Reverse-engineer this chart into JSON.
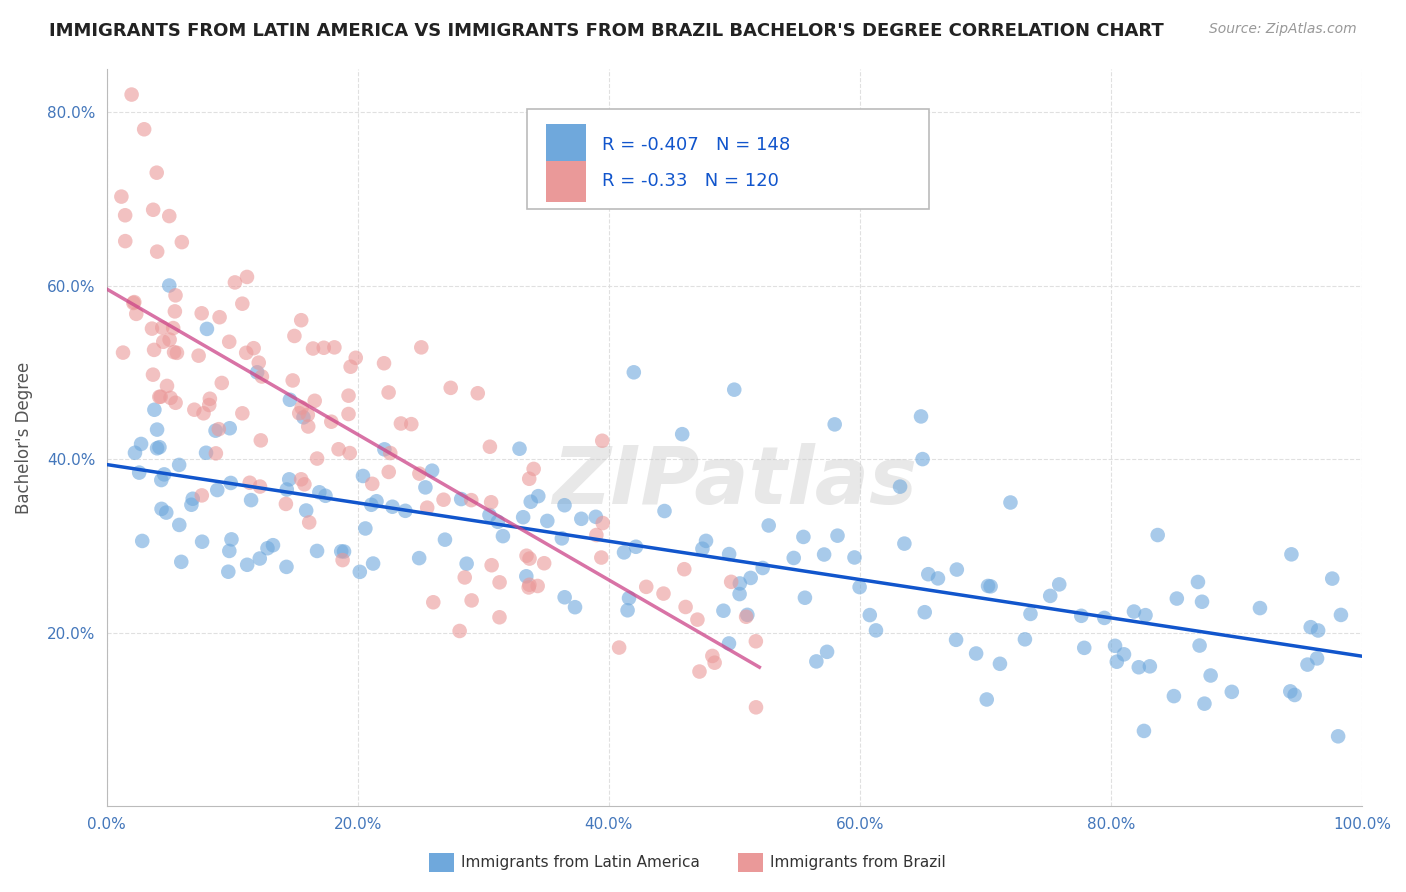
{
  "title": "IMMIGRANTS FROM LATIN AMERICA VS IMMIGRANTS FROM BRAZIL BACHELOR'S DEGREE CORRELATION CHART",
  "source": "Source: ZipAtlas.com",
  "ylabel": "Bachelor's Degree",
  "xlim": [
    0.0,
    1.0
  ],
  "ylim": [
    0.0,
    0.85
  ],
  "x_ticks": [
    0.0,
    0.2,
    0.4,
    0.6,
    0.8,
    1.0
  ],
  "x_tick_labels": [
    "0.0%",
    "20.0%",
    "40.0%",
    "60.0%",
    "80.0%",
    "100.0%"
  ],
  "y_ticks": [
    0.2,
    0.4,
    0.6,
    0.8
  ],
  "y_tick_labels": [
    "20.0%",
    "40.0%",
    "60.0%",
    "80.0%"
  ],
  "blue_color": "#6fa8dc",
  "pink_color": "#ea9999",
  "blue_line_color": "#1155cc",
  "pink_line_color": "#cc4488",
  "R_blue": -0.407,
  "N_blue": 148,
  "R_pink": -0.33,
  "N_pink": 120,
  "legend_label_blue": "Immigrants from Latin America",
  "legend_label_pink": "Immigrants from Brazil",
  "background_color": "#ffffff",
  "grid_color": "#dddddd",
  "title_fontsize": 13,
  "axis_label_fontsize": 12,
  "tick_fontsize": 11
}
